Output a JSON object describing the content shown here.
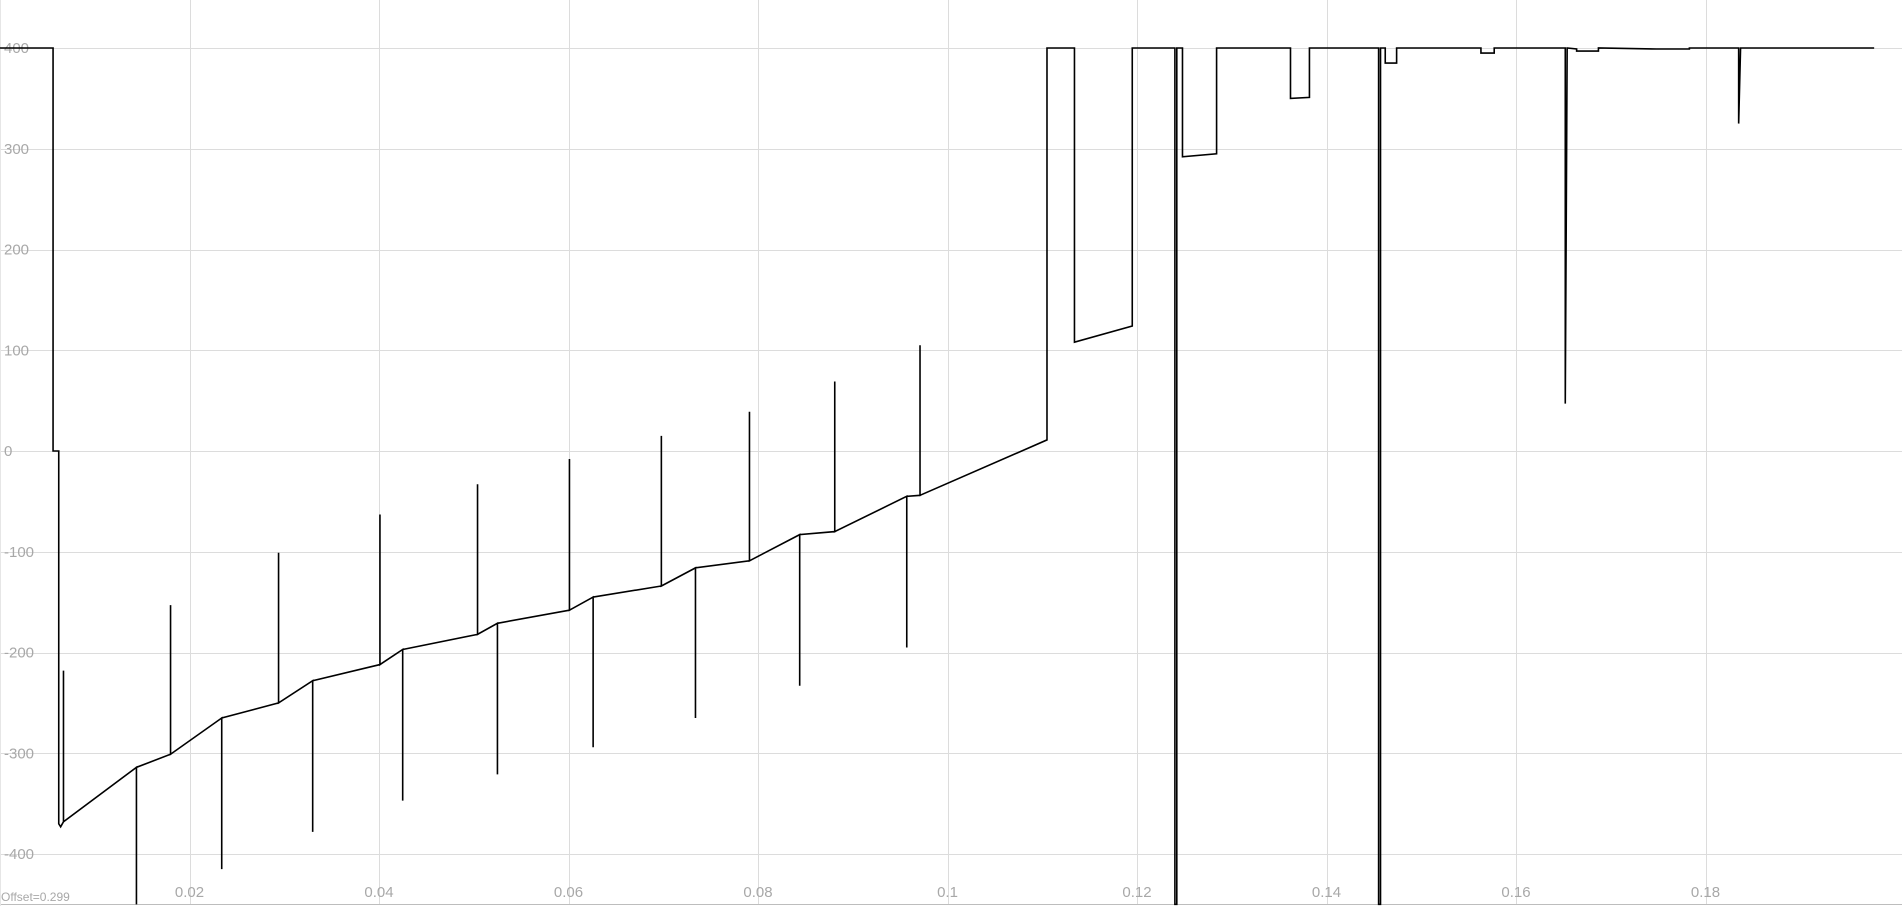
{
  "chart_data": {
    "type": "line",
    "title": "",
    "xlabel": "",
    "ylabel": "",
    "xlim": [
      0,
      0.1978
    ],
    "ylim": [
      -450,
      420
    ],
    "grid": true,
    "x_ticks": [
      0.02,
      0.04,
      0.06,
      0.08,
      0.1,
      0.12,
      0.14,
      0.16,
      0.18
    ],
    "x_tick_labels": [
      "0.02",
      "0.04",
      "0.06",
      "0.08",
      "0.1",
      "0.12",
      "0.14",
      "0.16",
      "0.18"
    ],
    "y_ticks": [
      400,
      300,
      200,
      100,
      0,
      -100,
      -200,
      -300,
      -400
    ],
    "y_tick_labels": [
      "400",
      "300",
      "200",
      "100",
      "0",
      "-100",
      "-200",
      "-300",
      "-400"
    ],
    "line_color": "#000000",
    "grid_color": "#dcdcdc",
    "label_color": "#a8a8a8",
    "series": [
      {
        "values": [
          [
            0,
            400
          ],
          [
            0.0056,
            400
          ],
          [
            0.0056,
            0
          ],
          [
            0.0062,
            0
          ],
          [
            0.0062,
            -370
          ],
          [
            0.0064,
            -373
          ],
          [
            0.0067,
            -368
          ],
          [
            0.0067,
            -218
          ],
          [
            0.0067,
            -368
          ],
          [
            0.0144,
            -314
          ],
          [
            0.0144,
            -450
          ],
          [
            0.0144,
            -314
          ],
          [
            0.018,
            -301
          ],
          [
            0.018,
            -153
          ],
          [
            0.018,
            -301
          ],
          [
            0.0234,
            -265
          ],
          [
            0.0234,
            -415
          ],
          [
            0.0234,
            -265
          ],
          [
            0.0294,
            -250
          ],
          [
            0.0294,
            -101
          ],
          [
            0.0294,
            -250
          ],
          [
            0.033,
            -228
          ],
          [
            0.033,
            -378
          ],
          [
            0.033,
            -228
          ],
          [
            0.0401,
            -212
          ],
          [
            0.0401,
            -63
          ],
          [
            0.0401,
            -212
          ],
          [
            0.0425,
            -197
          ],
          [
            0.0425,
            -347
          ],
          [
            0.0425,
            -197
          ],
          [
            0.0504,
            -182
          ],
          [
            0.0504,
            -33
          ],
          [
            0.0504,
            -182
          ],
          [
            0.0525,
            -171
          ],
          [
            0.0525,
            -321
          ],
          [
            0.0525,
            -171
          ],
          [
            0.0601,
            -158
          ],
          [
            0.0601,
            -8
          ],
          [
            0.0601,
            -158
          ],
          [
            0.0626,
            -145
          ],
          [
            0.0626,
            -294
          ],
          [
            0.0626,
            -145
          ],
          [
            0.0698,
            -134
          ],
          [
            0.0698,
            15
          ],
          [
            0.0698,
            -134
          ],
          [
            0.0734,
            -116
          ],
          [
            0.0734,
            -265
          ],
          [
            0.0734,
            -116
          ],
          [
            0.0791,
            -109
          ],
          [
            0.0791,
            39
          ],
          [
            0.0791,
            -109
          ],
          [
            0.0844,
            -83
          ],
          [
            0.0844,
            -233
          ],
          [
            0.0844,
            -83
          ],
          [
            0.0881,
            -80
          ],
          [
            0.0881,
            69
          ],
          [
            0.0881,
            -80
          ],
          [
            0.0957,
            -45
          ],
          [
            0.0957,
            -195
          ],
          [
            0.0957,
            -45
          ],
          [
            0.0971,
            -44
          ],
          [
            0.0971,
            105
          ],
          [
            0.0971,
            -44
          ],
          [
            0.1105,
            11
          ],
          [
            0.1105,
            400
          ],
          [
            0.1134,
            400
          ],
          [
            0.1134,
            108
          ],
          [
            0.1195,
            124
          ],
          [
            0.1195,
            400
          ],
          [
            0.124,
            400
          ],
          [
            0.124,
            -450
          ],
          [
            0.1242,
            -450
          ],
          [
            0.1242,
            400
          ],
          [
            0.1248,
            400
          ],
          [
            0.1248,
            292
          ],
          [
            0.1284,
            295
          ],
          [
            0.1284,
            400
          ],
          [
            0.1362,
            400
          ],
          [
            0.1362,
            350
          ],
          [
            0.1382,
            351
          ],
          [
            0.1382,
            400
          ],
          [
            0.1455,
            400
          ],
          [
            0.1455,
            -450
          ],
          [
            0.1457,
            -450
          ],
          [
            0.1457,
            400
          ],
          [
            0.1462,
            400
          ],
          [
            0.1462,
            385
          ],
          [
            0.1474,
            385
          ],
          [
            0.1474,
            400
          ],
          [
            0.1563,
            400
          ],
          [
            0.1563,
            395
          ],
          [
            0.1577,
            395
          ],
          [
            0.1577,
            400
          ],
          [
            0.1652,
            400
          ],
          [
            0.1652,
            47
          ],
          [
            0.1654,
            400
          ],
          [
            0.1664,
            399
          ],
          [
            0.1664,
            397
          ],
          [
            0.1687,
            397
          ],
          [
            0.1687,
            400
          ],
          [
            0.1748,
            399
          ],
          [
            0.1783,
            399
          ],
          [
            0.1783,
            400
          ],
          [
            0.1835,
            400
          ],
          [
            0.1835,
            325
          ],
          [
            0.1837,
            400
          ],
          [
            0.1978,
            400
          ]
        ]
      }
    ]
  },
  "footer": {
    "offset_label": "Offset=0.299"
  }
}
